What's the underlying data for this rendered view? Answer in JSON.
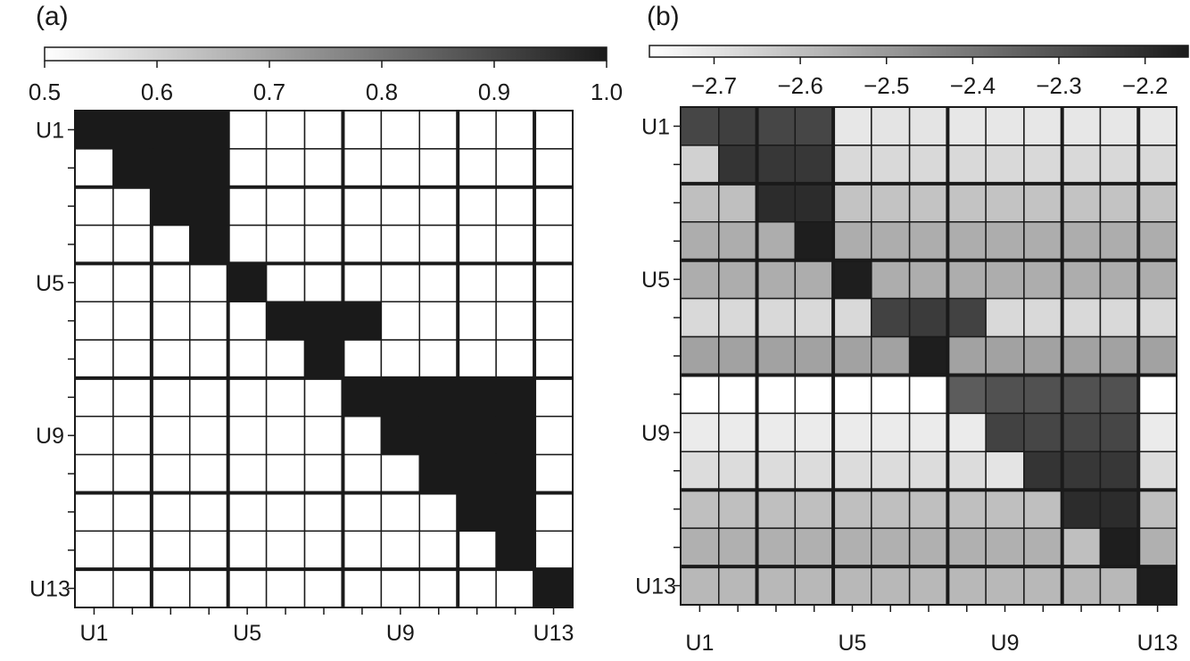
{
  "chart_data": [
    {
      "type": "heatmap",
      "panel_label": "(a)",
      "colorbar": {
        "range": [
          0.5,
          1.0
        ],
        "ticks": [
          "0.5",
          "0.6",
          "0.7",
          "0.8",
          "0.9",
          "1.0"
        ],
        "placement": "top",
        "colormap": [
          "#ffffff",
          "#1a1a1a"
        ]
      },
      "x_labels": [
        "U1",
        "",
        "",
        "",
        "U5",
        "",
        "",
        "",
        "U9",
        "",
        "",
        "",
        "U13"
      ],
      "y_labels": [
        "U1",
        "",
        "",
        "",
        "U5",
        "",
        "",
        "",
        "U9",
        "",
        "",
        "",
        "U13"
      ],
      "group_boundaries": [
        2,
        4,
        7,
        10,
        12
      ],
      "values": [
        [
          1.0,
          1.0,
          1.0,
          1.0,
          0.5,
          0.5,
          0.5,
          0.5,
          0.5,
          0.5,
          0.5,
          0.5,
          0.5
        ],
        [
          0.5,
          1.0,
          1.0,
          1.0,
          0.5,
          0.5,
          0.5,
          0.5,
          0.5,
          0.5,
          0.5,
          0.5,
          0.5
        ],
        [
          0.5,
          0.5,
          1.0,
          1.0,
          0.5,
          0.5,
          0.5,
          0.5,
          0.5,
          0.5,
          0.5,
          0.5,
          0.5
        ],
        [
          0.5,
          0.5,
          0.5,
          1.0,
          0.5,
          0.5,
          0.5,
          0.5,
          0.5,
          0.5,
          0.5,
          0.5,
          0.5
        ],
        [
          0.5,
          0.5,
          0.5,
          0.5,
          1.0,
          0.5,
          0.5,
          0.5,
          0.5,
          0.5,
          0.5,
          0.5,
          0.5
        ],
        [
          0.5,
          0.5,
          0.5,
          0.5,
          0.5,
          1.0,
          1.0,
          1.0,
          0.5,
          0.5,
          0.5,
          0.5,
          0.5
        ],
        [
          0.5,
          0.5,
          0.5,
          0.5,
          0.5,
          0.5,
          1.0,
          0.5,
          0.5,
          0.5,
          0.5,
          0.5,
          0.5
        ],
        [
          0.5,
          0.5,
          0.5,
          0.5,
          0.5,
          0.5,
          0.5,
          1.0,
          1.0,
          1.0,
          1.0,
          1.0,
          0.5
        ],
        [
          0.5,
          0.5,
          0.5,
          0.5,
          0.5,
          0.5,
          0.5,
          0.5,
          1.0,
          1.0,
          1.0,
          1.0,
          0.5
        ],
        [
          0.5,
          0.5,
          0.5,
          0.5,
          0.5,
          0.5,
          0.5,
          0.5,
          0.5,
          1.0,
          1.0,
          1.0,
          0.5
        ],
        [
          0.5,
          0.5,
          0.5,
          0.5,
          0.5,
          0.5,
          0.5,
          0.5,
          0.5,
          0.5,
          1.0,
          1.0,
          0.5
        ],
        [
          0.5,
          0.5,
          0.5,
          0.5,
          0.5,
          0.5,
          0.5,
          0.5,
          0.5,
          0.5,
          0.5,
          1.0,
          0.5
        ],
        [
          0.5,
          0.5,
          0.5,
          0.5,
          0.5,
          0.5,
          0.5,
          0.5,
          0.5,
          0.5,
          0.5,
          0.5,
          1.0
        ]
      ]
    },
    {
      "type": "heatmap",
      "panel_label": "(b)",
      "colorbar": {
        "range": [
          -2.775,
          -2.15
        ],
        "ticks": [
          "−2.7",
          "−2.6",
          "−2.5",
          "−2.4",
          "−2.3",
          "−2.2"
        ],
        "tick_values": [
          -2.7,
          -2.6,
          -2.5,
          -2.4,
          -2.3,
          -2.2
        ],
        "placement": "top",
        "colormap": [
          "#ffffff",
          "#1a1a1a"
        ]
      },
      "x_labels": [
        "U1",
        "",
        "",
        "",
        "U5",
        "",
        "",
        "",
        "U9",
        "",
        "",
        "",
        "U13"
      ],
      "y_labels": [
        "U1",
        "",
        "",
        "",
        "U5",
        "",
        "",
        "",
        "U9",
        "",
        "",
        "",
        "U13"
      ],
      "group_boundaries": [
        2,
        4,
        7,
        10,
        12
      ],
      "values": [
        [
          -2.27,
          -2.25,
          -2.27,
          -2.27,
          -2.71,
          -2.7,
          -2.7,
          -2.71,
          -2.71,
          -2.71,
          -2.71,
          -2.71,
          -2.71
        ],
        [
          -2.65,
          -2.22,
          -2.23,
          -2.23,
          -2.67,
          -2.67,
          -2.67,
          -2.67,
          -2.67,
          -2.67,
          -2.67,
          -2.67,
          -2.67
        ],
        [
          -2.6,
          -2.6,
          -2.2,
          -2.2,
          -2.61,
          -2.61,
          -2.61,
          -2.61,
          -2.61,
          -2.61,
          -2.61,
          -2.61,
          -2.61
        ],
        [
          -2.55,
          -2.55,
          -2.55,
          -2.16,
          -2.55,
          -2.55,
          -2.55,
          -2.55,
          -2.55,
          -2.55,
          -2.55,
          -2.55,
          -2.55
        ],
        [
          -2.55,
          -2.55,
          -2.55,
          -2.55,
          -2.16,
          -2.55,
          -2.55,
          -2.55,
          -2.55,
          -2.55,
          -2.55,
          -2.55,
          -2.55
        ],
        [
          -2.67,
          -2.67,
          -2.67,
          -2.67,
          -2.67,
          -2.26,
          -2.24,
          -2.26,
          -2.67,
          -2.67,
          -2.67,
          -2.67,
          -2.67
        ],
        [
          -2.52,
          -2.52,
          -2.52,
          -2.52,
          -2.52,
          -2.52,
          -2.16,
          -2.52,
          -2.52,
          -2.52,
          -2.52,
          -2.52,
          -2.52
        ],
        [
          -2.78,
          -2.78,
          -2.78,
          -2.78,
          -2.78,
          -2.78,
          -2.78,
          -2.33,
          -2.3,
          -2.3,
          -2.3,
          -2.3,
          -2.78
        ],
        [
          -2.72,
          -2.72,
          -2.72,
          -2.72,
          -2.72,
          -2.72,
          -2.72,
          -2.72,
          -2.26,
          -2.27,
          -2.27,
          -2.27,
          -2.72
        ],
        [
          -2.68,
          -2.68,
          -2.68,
          -2.68,
          -2.68,
          -2.68,
          -2.68,
          -2.68,
          -2.7,
          -2.22,
          -2.23,
          -2.23,
          -2.68
        ],
        [
          -2.6,
          -2.6,
          -2.6,
          -2.6,
          -2.6,
          -2.6,
          -2.6,
          -2.6,
          -2.6,
          -2.6,
          -2.2,
          -2.2,
          -2.6
        ],
        [
          -2.56,
          -2.56,
          -2.56,
          -2.56,
          -2.56,
          -2.56,
          -2.56,
          -2.56,
          -2.56,
          -2.56,
          -2.6,
          -2.16,
          -2.56
        ],
        [
          -2.58,
          -2.58,
          -2.58,
          -2.58,
          -2.58,
          -2.58,
          -2.58,
          -2.58,
          -2.58,
          -2.58,
          -2.58,
          -2.58,
          -2.16
        ]
      ]
    }
  ]
}
